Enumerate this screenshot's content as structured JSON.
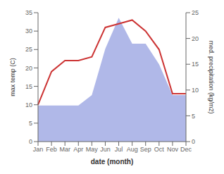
{
  "chart_data": {
    "type": "line",
    "categories": [
      "Jan",
      "Feb",
      "Mar",
      "Apr",
      "May",
      "Jun",
      "Jul",
      "Aug",
      "Sep",
      "Oct",
      "Nov",
      "Dec"
    ],
    "series": [
      {
        "type": "area",
        "axis": "y2",
        "color": "#b0b8e8",
        "values": [
          7,
          7,
          7,
          7,
          9,
          18,
          24,
          19,
          19,
          15,
          9,
          9
        ]
      },
      {
        "type": "line",
        "color": "#cc3333",
        "values": [
          10,
          19,
          22,
          22,
          23,
          31,
          32,
          33,
          30,
          25,
          13,
          13
        ]
      }
    ],
    "xlabel": "date (month)",
    "ylabel": "max temp (C)",
    "y2label": "med. precipitation (kg/m2)",
    "ylim": [
      0,
      35
    ],
    "yticks": [
      0,
      5,
      10,
      15,
      20,
      25,
      30,
      35
    ],
    "y2lim": [
      0,
      25
    ],
    "y2ticks": [
      0,
      5,
      10,
      15,
      20,
      25
    ],
    "grid": false
  }
}
